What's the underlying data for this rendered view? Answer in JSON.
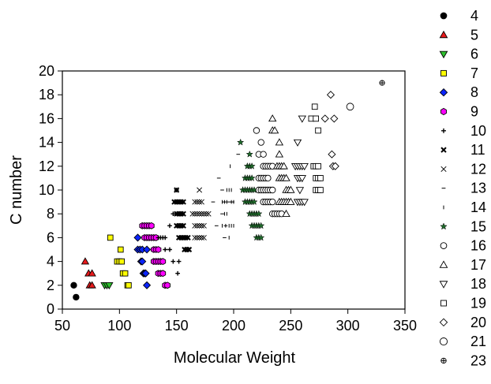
{
  "chart_data": {
    "type": "scatter",
    "xlabel": "Molecular Weight",
    "ylabel": "C number",
    "xlim": [
      50,
      350
    ],
    "ylim": [
      0,
      20
    ],
    "xticks": [
      "50",
      "100",
      "150",
      "200",
      "250",
      "300",
      "350"
    ],
    "yticks": [
      "0",
      "2",
      "4",
      "6",
      "8",
      "10",
      "12",
      "14",
      "16",
      "18",
      "20"
    ],
    "grid": false,
    "legend_position": "right",
    "series": [
      {
        "name": "4",
        "marker": "circle",
        "fill": "#000000",
        "points": [
          [
            60,
            2
          ],
          [
            62,
            1
          ]
        ]
      },
      {
        "name": "5",
        "marker": "triangle-up",
        "fill": "#e8191b",
        "points": [
          [
            70,
            4
          ],
          [
            73,
            3
          ],
          [
            74,
            2
          ],
          [
            76,
            2
          ],
          [
            76,
            3
          ]
        ]
      },
      {
        "name": "6",
        "marker": "triangle-down",
        "fill": "#2fc02f",
        "points": [
          [
            87,
            2
          ],
          [
            89,
            2
          ],
          [
            91,
            2
          ]
        ]
      },
      {
        "name": "7",
        "marker": "square",
        "fill": "#ffff00",
        "points": [
          [
            92,
            6
          ],
          [
            98,
            4
          ],
          [
            100,
            4
          ],
          [
            101,
            5
          ],
          [
            102,
            4
          ],
          [
            103,
            3
          ],
          [
            105,
            3
          ],
          [
            107,
            2
          ],
          [
            108,
            2
          ]
        ]
      },
      {
        "name": "8",
        "marker": "diamond",
        "fill": "#0b24fb",
        "points": [
          [
            116,
            6
          ],
          [
            116,
            5
          ],
          [
            118,
            5
          ],
          [
            119,
            4
          ],
          [
            120,
            4
          ],
          [
            120,
            5
          ],
          [
            121,
            3
          ],
          [
            122,
            3
          ],
          [
            123,
            3
          ],
          [
            124,
            2
          ],
          [
            124,
            5
          ]
        ]
      },
      {
        "name": "9",
        "marker": "hexagon",
        "fill": "#ff00ff",
        "points": [
          [
            120,
            7
          ],
          [
            122,
            7
          ],
          [
            124,
            7
          ],
          [
            126,
            7
          ],
          [
            128,
            7
          ],
          [
            122,
            6
          ],
          [
            124,
            6
          ],
          [
            126,
            6
          ],
          [
            128,
            6
          ],
          [
            130,
            6
          ],
          [
            132,
            6
          ],
          [
            130,
            5
          ],
          [
            132,
            5
          ],
          [
            134,
            5
          ],
          [
            130,
            4
          ],
          [
            132,
            4
          ],
          [
            134,
            4
          ],
          [
            136,
            4
          ],
          [
            138,
            4
          ],
          [
            134,
            3
          ],
          [
            136,
            3
          ],
          [
            138,
            3
          ],
          [
            140,
            2
          ],
          [
            142,
            2
          ]
        ]
      },
      {
        "name": "10",
        "marker": "plus",
        "fill": "#000000",
        "points": [
          [
            134,
            6
          ],
          [
            136,
            6
          ],
          [
            138,
            6
          ],
          [
            140,
            6
          ],
          [
            144,
            7
          ],
          [
            147,
            8
          ],
          [
            149,
            8
          ],
          [
            151,
            8
          ],
          [
            153,
            8
          ],
          [
            155,
            8
          ],
          [
            147,
            4
          ],
          [
            152,
            4
          ],
          [
            151,
            3
          ],
          [
            150,
            10
          ],
          [
            140,
            5
          ],
          [
            144,
            5
          ]
        ]
      },
      {
        "name": "11",
        "marker": "x",
        "fill": "#000000",
        "points": [
          [
            150,
            10
          ],
          [
            148,
            9
          ],
          [
            150,
            9
          ],
          [
            152,
            9
          ],
          [
            154,
            9
          ],
          [
            156,
            9
          ],
          [
            150,
            8
          ],
          [
            152,
            8
          ],
          [
            154,
            8
          ],
          [
            156,
            8
          ],
          [
            150,
            7
          ],
          [
            152,
            7
          ],
          [
            154,
            7
          ],
          [
            156,
            7
          ],
          [
            152,
            6
          ],
          [
            154,
            6
          ],
          [
            156,
            6
          ],
          [
            158,
            6
          ],
          [
            160,
            6
          ],
          [
            157,
            5
          ],
          [
            159,
            5
          ],
          [
            161,
            5
          ]
        ]
      },
      {
        "name": "12",
        "marker": "x-thin",
        "fill": "#000000",
        "points": [
          [
            170,
            10
          ],
          [
            166,
            9
          ],
          [
            168,
            9
          ],
          [
            170,
            9
          ],
          [
            172,
            9
          ],
          [
            164,
            8
          ],
          [
            166,
            8
          ],
          [
            168,
            8
          ],
          [
            170,
            8
          ],
          [
            172,
            8
          ],
          [
            174,
            8
          ],
          [
            176,
            8
          ],
          [
            178,
            8
          ],
          [
            166,
            7
          ],
          [
            168,
            7
          ],
          [
            170,
            7
          ],
          [
            172,
            7
          ],
          [
            174,
            7
          ],
          [
            166,
            6
          ],
          [
            168,
            6
          ],
          [
            170,
            6
          ],
          [
            172,
            6
          ],
          [
            174,
            6
          ]
        ]
      },
      {
        "name": "13",
        "marker": "hbar",
        "fill": "#000000",
        "points": [
          [
            182,
            9
          ],
          [
            192,
            9
          ],
          [
            185,
            7
          ],
          [
            190,
            8
          ],
          [
            193,
            7
          ],
          [
            187,
            11
          ],
          [
            190,
            10
          ],
          [
            196,
            9
          ],
          [
            199,
            9
          ],
          [
            204,
            13
          ],
          [
            192,
            6
          ]
        ]
      },
      {
        "name": "14",
        "marker": "vbar",
        "fill": "#000000",
        "points": [
          [
            197,
            12
          ],
          [
            194,
            10
          ],
          [
            196,
            10
          ],
          [
            198,
            10
          ],
          [
            190,
            9
          ],
          [
            192,
            9
          ],
          [
            194,
            9
          ],
          [
            198,
            9
          ],
          [
            200,
            9
          ],
          [
            192,
            8
          ],
          [
            194,
            8
          ],
          [
            190,
            7
          ],
          [
            193,
            7
          ],
          [
            196,
            7
          ],
          [
            198,
            7
          ],
          [
            200,
            7
          ],
          [
            196,
            6
          ]
        ]
      },
      {
        "name": "15",
        "marker": "star",
        "fill": "#1f6b2b",
        "points": [
          [
            206,
            14
          ],
          [
            214,
            13
          ],
          [
            212,
            12
          ],
          [
            214,
            12
          ],
          [
            216,
            12
          ],
          [
            210,
            11
          ],
          [
            212,
            11
          ],
          [
            214,
            11
          ],
          [
            216,
            11
          ],
          [
            208,
            10
          ],
          [
            210,
            10
          ],
          [
            212,
            10
          ],
          [
            214,
            10
          ],
          [
            216,
            10
          ],
          [
            218,
            10
          ],
          [
            210,
            9
          ],
          [
            212,
            9
          ],
          [
            214,
            9
          ],
          [
            216,
            9
          ],
          [
            218,
            9
          ],
          [
            214,
            8
          ],
          [
            216,
            8
          ],
          [
            218,
            8
          ],
          [
            220,
            8
          ],
          [
            222,
            8
          ],
          [
            216,
            7
          ],
          [
            218,
            7
          ],
          [
            220,
            7
          ],
          [
            222,
            7
          ],
          [
            224,
            7
          ],
          [
            220,
            6
          ],
          [
            222,
            6
          ],
          [
            224,
            6
          ]
        ]
      },
      {
        "name": "16",
        "marker": "circle",
        "fill": "#ffffff",
        "points": [
          [
            220,
            15
          ],
          [
            224,
            14
          ],
          [
            222,
            13
          ],
          [
            226,
            13
          ],
          [
            226,
            12
          ],
          [
            228,
            12
          ],
          [
            230,
            12
          ],
          [
            232,
            12
          ],
          [
            234,
            12
          ],
          [
            222,
            11
          ],
          [
            224,
            11
          ],
          [
            226,
            11
          ],
          [
            228,
            11
          ],
          [
            230,
            11
          ],
          [
            222,
            10
          ],
          [
            224,
            10
          ],
          [
            226,
            10
          ],
          [
            228,
            10
          ],
          [
            230,
            10
          ],
          [
            232,
            10
          ],
          [
            234,
            10
          ],
          [
            226,
            9
          ],
          [
            228,
            9
          ],
          [
            230,
            9
          ],
          [
            232,
            9
          ],
          [
            234,
            9
          ],
          [
            234,
            8
          ],
          [
            236,
            8
          ],
          [
            238,
            8
          ],
          [
            240,
            8
          ],
          [
            242,
            8
          ]
        ]
      },
      {
        "name": "17",
        "marker": "triangle-up-open",
        "fill": "#ffffff",
        "points": [
          [
            234,
            16
          ],
          [
            234,
            15
          ],
          [
            236,
            15
          ],
          [
            240,
            14
          ],
          [
            240,
            13
          ],
          [
            238,
            12
          ],
          [
            240,
            12
          ],
          [
            242,
            12
          ],
          [
            244,
            12
          ],
          [
            240,
            11
          ],
          [
            242,
            11
          ],
          [
            244,
            11
          ],
          [
            246,
            11
          ],
          [
            246,
            10
          ],
          [
            248,
            10
          ],
          [
            250,
            10
          ],
          [
            240,
            9
          ],
          [
            242,
            9
          ],
          [
            244,
            9
          ],
          [
            246,
            9
          ],
          [
            248,
            9
          ],
          [
            250,
            9
          ],
          [
            246,
            8
          ]
        ]
      },
      {
        "name": "18",
        "marker": "triangle-down-open",
        "fill": "#ffffff",
        "points": [
          [
            260,
            16
          ],
          [
            256,
            14
          ],
          [
            254,
            12
          ],
          [
            256,
            12
          ],
          [
            258,
            12
          ],
          [
            260,
            12
          ],
          [
            262,
            12
          ],
          [
            256,
            11
          ],
          [
            258,
            11
          ],
          [
            260,
            11
          ],
          [
            258,
            10
          ],
          [
            256,
            9
          ],
          [
            258,
            9
          ],
          [
            260,
            9
          ],
          [
            262,
            9
          ]
        ]
      },
      {
        "name": "19",
        "marker": "square-open",
        "fill": "#ffffff",
        "points": [
          [
            271,
            17
          ],
          [
            268,
            16
          ],
          [
            272,
            16
          ],
          [
            274,
            15
          ],
          [
            270,
            12
          ],
          [
            272,
            12
          ],
          [
            274,
            12
          ],
          [
            272,
            11
          ],
          [
            274,
            11
          ],
          [
            276,
            11
          ],
          [
            272,
            10
          ],
          [
            274,
            10
          ],
          [
            276,
            10
          ]
        ]
      },
      {
        "name": "20",
        "marker": "diamond-open",
        "fill": "#ffffff",
        "points": [
          [
            285,
            18
          ],
          [
            280,
            16
          ],
          [
            288,
            16
          ],
          [
            286,
            13
          ],
          [
            287,
            12
          ],
          [
            289,
            12
          ]
        ]
      },
      {
        "name": "21",
        "marker": "circle-open-large",
        "fill": "#ffffff",
        "points": [
          [
            302,
            17
          ]
        ]
      },
      {
        "name": "23",
        "marker": "circle-cross",
        "fill": "#ffffff",
        "points": [
          [
            330,
            19
          ]
        ]
      }
    ]
  }
}
